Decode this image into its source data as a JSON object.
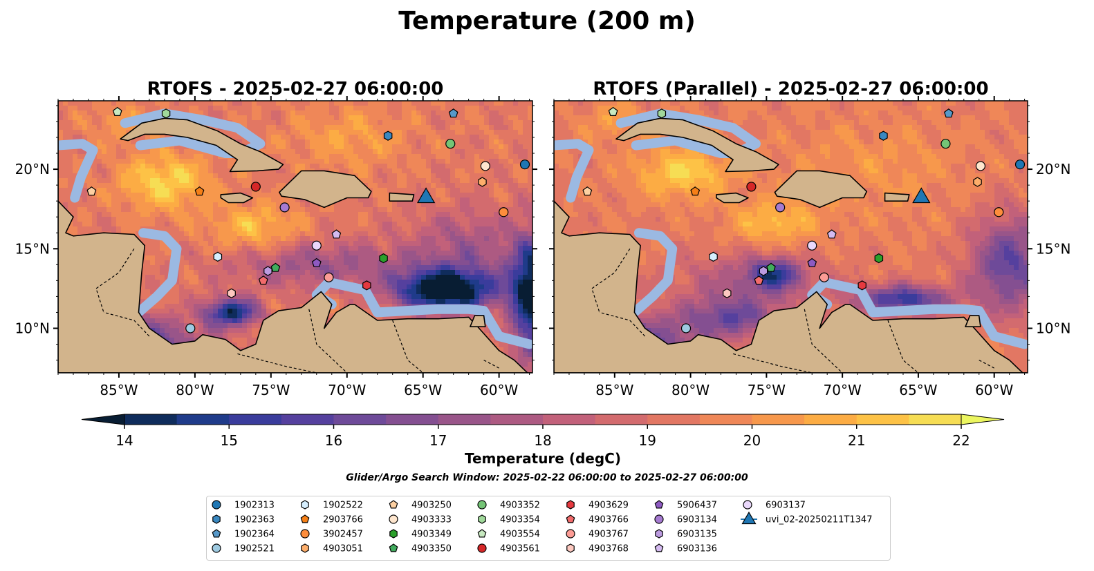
{
  "figure": {
    "suptitle": "Temperature (200 m)",
    "search_window": "Glider/Argo Search Window: 2025-02-22 06:00:00 to 2025-02-27 06:00:00"
  },
  "chart_data": {
    "type": "heatmap",
    "panels": [
      {
        "title": "RTOFS - 2025-02-27 06:00:00",
        "variant": "rtofs"
      },
      {
        "title": "RTOFS (Parallel) - 2025-02-27 06:00:00",
        "variant": "parallel"
      }
    ],
    "xlim": [
      -89,
      -57.8
    ],
    "ylim": [
      7.2,
      24.3
    ],
    "x_ticks": [
      -85,
      -80,
      -75,
      -70,
      -65,
      -60
    ],
    "x_tick_labels": [
      "85°W",
      "80°W",
      "75°W",
      "70°W",
      "65°W",
      "60°W"
    ],
    "y_ticks": [
      10,
      15,
      20
    ],
    "y_tick_labels": [
      "10°N",
      "15°N",
      "20°N"
    ],
    "colorbar": {
      "label": "Temperature (degC)",
      "min": 14,
      "max": 22,
      "step": 0.5,
      "ticks": [
        14,
        15,
        16,
        17,
        18,
        19,
        20,
        21,
        22
      ],
      "extend": "both",
      "colormap": "thermal",
      "colors": [
        "#081d33",
        "#0f2c5c",
        "#1f3b8a",
        "#3a3c9c",
        "#55409e",
        "#6e4a99",
        "#844f91",
        "#995589",
        "#ad5a82",
        "#c2617a",
        "#d36b6e",
        "#e27763",
        "#ef8758",
        "#f7984c",
        "#fcac44",
        "#fdc246",
        "#f6dd54",
        "#ecf660"
      ]
    },
    "land_color": "#d2b48c",
    "shelf_color": "#9bb9e2",
    "instruments": [
      {
        "id": "1902313",
        "lon": -58.3,
        "lat": 20.3,
        "marker": "circle",
        "color": "#1f77b4"
      },
      {
        "id": "1902363",
        "lon": -67.3,
        "lat": 22.1,
        "marker": "hexagon",
        "color": "#3a88c0"
      },
      {
        "id": "1902364",
        "lon": -63.0,
        "lat": 23.5,
        "marker": "pentagon",
        "color": "#5799c9"
      },
      {
        "id": "1902521",
        "lon": -80.3,
        "lat": 10.0,
        "marker": "circle",
        "color": "#9ecae1"
      },
      {
        "id": "1902522",
        "lon": -78.5,
        "lat": 14.5,
        "marker": "hexagon",
        "color": "#d6efff"
      },
      {
        "id": "2903766",
        "lon": -79.7,
        "lat": 18.6,
        "marker": "pentagon",
        "color": "#f57f17"
      },
      {
        "id": "3902457",
        "lon": -59.7,
        "lat": 17.3,
        "marker": "circle",
        "color": "#fd8d3c"
      },
      {
        "id": "4903051",
        "lon": -61.1,
        "lat": 19.2,
        "marker": "hexagon",
        "color": "#fdae6b"
      },
      {
        "id": "4903250",
        "lon": -86.8,
        "lat": 18.6,
        "marker": "pentagon",
        "color": "#fdd0a2"
      },
      {
        "id": "4903333",
        "lon": -60.9,
        "lat": 20.2,
        "marker": "circle",
        "color": "#fee6ce"
      },
      {
        "id": "4903349",
        "lon": -67.6,
        "lat": 14.4,
        "marker": "hexagon",
        "color": "#2ca02c"
      },
      {
        "id": "4903350",
        "lon": -74.7,
        "lat": 13.8,
        "marker": "pentagon",
        "color": "#41ab5d"
      },
      {
        "id": "4903352",
        "lon": -63.2,
        "lat": 21.6,
        "marker": "circle",
        "color": "#74c476"
      },
      {
        "id": "4903354",
        "lon": -81.9,
        "lat": 23.5,
        "marker": "hexagon",
        "color": "#a1d99b"
      },
      {
        "id": "4903554",
        "lon": -85.1,
        "lat": 23.6,
        "marker": "pentagon",
        "color": "#c7e9c0"
      },
      {
        "id": "4903561",
        "lon": -76.0,
        "lat": 18.9,
        "marker": "circle",
        "color": "#d62728"
      },
      {
        "id": "4903629",
        "lon": -68.7,
        "lat": 12.7,
        "marker": "hexagon",
        "color": "#e6393f"
      },
      {
        "id": "4903766",
        "lon": -75.5,
        "lat": 13.0,
        "marker": "pentagon",
        "color": "#f26b6b"
      },
      {
        "id": "4903767",
        "lon": -71.2,
        "lat": 13.2,
        "marker": "circle",
        "color": "#fc9c95"
      },
      {
        "id": "4903768",
        "lon": -77.6,
        "lat": 12.2,
        "marker": "hexagon",
        "color": "#fdc9c0"
      },
      {
        "id": "5906437",
        "lon": -72.0,
        "lat": 14.1,
        "marker": "pentagon",
        "color": "#8e5ac2"
      },
      {
        "id": "6903134",
        "lon": -74.1,
        "lat": 17.6,
        "marker": "circle",
        "color": "#a67bd1"
      },
      {
        "id": "6903135",
        "lon": -75.2,
        "lat": 13.6,
        "marker": "hexagon",
        "color": "#bc9be0"
      },
      {
        "id": "6903136",
        "lon": -70.7,
        "lat": 15.9,
        "marker": "pentagon",
        "color": "#d4baf0"
      },
      {
        "id": "6903137",
        "lon": -72.0,
        "lat": 15.2,
        "marker": "circle",
        "color": "#ead8fb"
      },
      {
        "id": "uvi_02-20250211T1347",
        "lon": -64.8,
        "lat": 18.2,
        "marker": "triangle",
        "color": "#1f77b4"
      }
    ]
  }
}
